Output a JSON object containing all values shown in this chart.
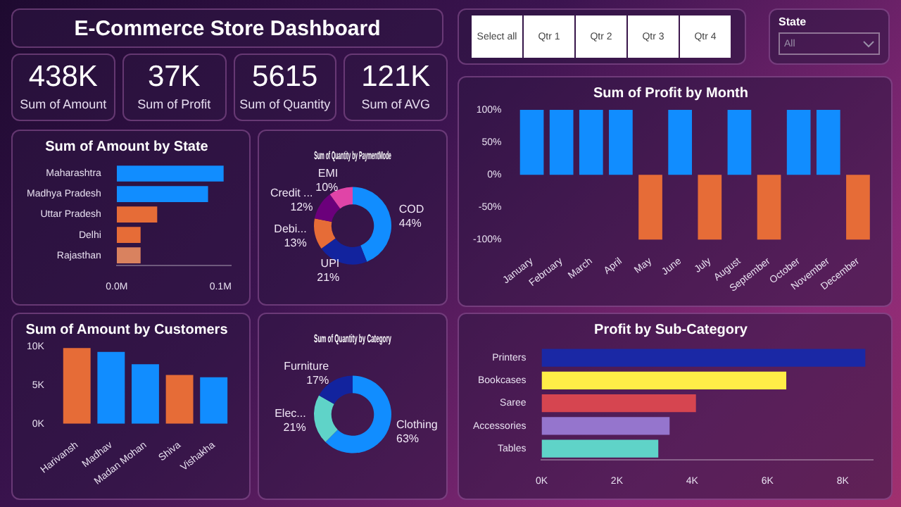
{
  "chart_data": [
    {
      "type": "other",
      "title": "E-Commerce Store Dashboard"
    },
    {
      "type": "other",
      "annotations": [
        "438K",
        "Sum of Amount",
        "37K",
        "Sum of Profit",
        "5615",
        "Sum of Quantity",
        "121K",
        "Sum of AVG"
      ]
    },
    {
      "type": "other",
      "annotations": [
        "Select all",
        "Qtr 1",
        "Qtr 2",
        "Qtr 3",
        "Qtr 4"
      ]
    },
    {
      "type": "other",
      "title": "State",
      "annotations": [
        "All"
      ]
    },
    {
      "type": "bar",
      "title": "Sum of Amount by State",
      "orientation": "horizontal",
      "categories": [
        "Maharashtra",
        "Madhya Pradesh",
        "Uttar Pradesh",
        "Delhi",
        "Rajasthan"
      ],
      "values": [
        0.103,
        0.088,
        0.039,
        0.023,
        0.023
      ],
      "colors": [
        "#118dff",
        "#118dff",
        "#e66c37",
        "#e66c37",
        "#d9825f"
      ],
      "xlim": [
        0,
        0.11
      ],
      "xticks": [
        {
          "value": 0,
          "label": "0.0M"
        },
        {
          "value": 0.1,
          "label": "0.1M"
        }
      ],
      "legend": false
    },
    {
      "type": "donut",
      "title": "Sum of Quantity by PaymentMode",
      "categories": [
        "COD",
        "UPI",
        "Debi...",
        "Credit ...",
        "EMI"
      ],
      "values": [
        44,
        21,
        13,
        12,
        10
      ],
      "value_labels": [
        "44%",
        "21%",
        "13%",
        "12%",
        "10%"
      ],
      "colors": [
        "#118dff",
        "#12239e",
        "#e66c37",
        "#6b007b",
        "#e044a7"
      ],
      "legend": false
    },
    {
      "type": "bar",
      "title": "Sum of Profit by Month",
      "categories": [
        "January",
        "February",
        "March",
        "April",
        "May",
        "June",
        "July",
        "August",
        "September",
        "October",
        "November",
        "December"
      ],
      "values": [
        100,
        100,
        100,
        100,
        -100,
        100,
        -100,
        100,
        -100,
        100,
        100,
        -100
      ],
      "colors": [
        "#118dff",
        "#118dff",
        "#118dff",
        "#118dff",
        "#e66c37",
        "#118dff",
        "#e66c37",
        "#118dff",
        "#e66c37",
        "#118dff",
        "#118dff",
        "#e66c37"
      ],
      "ylim": [
        -100,
        100
      ],
      "yticks": [
        {
          "value": -100,
          "label": "-100%"
        },
        {
          "value": -50,
          "label": "-50%"
        },
        {
          "value": 0,
          "label": "0%"
        },
        {
          "value": 50,
          "label": "50%"
        },
        {
          "value": 100,
          "label": "100%"
        }
      ],
      "legend": false
    },
    {
      "type": "bar",
      "title": "Sum of Amount by Customers",
      "categories": [
        "Harivansh",
        "Madhav",
        "Madan Mohan",
        "Shiva",
        "Vishakha"
      ],
      "values": [
        9.8,
        9.3,
        7.7,
        6.3,
        6.0
      ],
      "colors": [
        "#e66c37",
        "#118dff",
        "#118dff",
        "#e66c37",
        "#118dff"
      ],
      "ylim": [
        0,
        10
      ],
      "yticks": [
        {
          "value": 0,
          "label": "0K"
        },
        {
          "value": 5,
          "label": "5K"
        },
        {
          "value": 10,
          "label": "10K"
        }
      ],
      "legend": false
    },
    {
      "type": "donut",
      "title": "Sum of Quantity by Category",
      "categories": [
        "Clothing",
        "Elec...",
        "Furniture"
      ],
      "values": [
        63,
        21,
        17
      ],
      "value_labels": [
        "63%",
        "21%",
        "17%"
      ],
      "colors": [
        "#118dff",
        "#5fd3c8",
        "#12239e"
      ],
      "legend": false
    },
    {
      "type": "bar",
      "title": "Profit by Sub-Category",
      "orientation": "horizontal",
      "categories": [
        "Printers",
        "Bookcases",
        "Saree",
        "Accessories",
        "Tables"
      ],
      "values": [
        8.6,
        6.5,
        4.1,
        3.4,
        3.1
      ],
      "colors": [
        "#1a28a5",
        "#ffed47",
        "#d64550",
        "#9575cd",
        "#5fd3c8"
      ],
      "xlim": [
        0,
        8.8
      ],
      "xticks": [
        {
          "value": 0,
          "label": "0K"
        },
        {
          "value": 2,
          "label": "2K"
        },
        {
          "value": 4,
          "label": "4K"
        },
        {
          "value": 6,
          "label": "6K"
        },
        {
          "value": 8,
          "label": "8K"
        }
      ],
      "legend": false
    }
  ]
}
